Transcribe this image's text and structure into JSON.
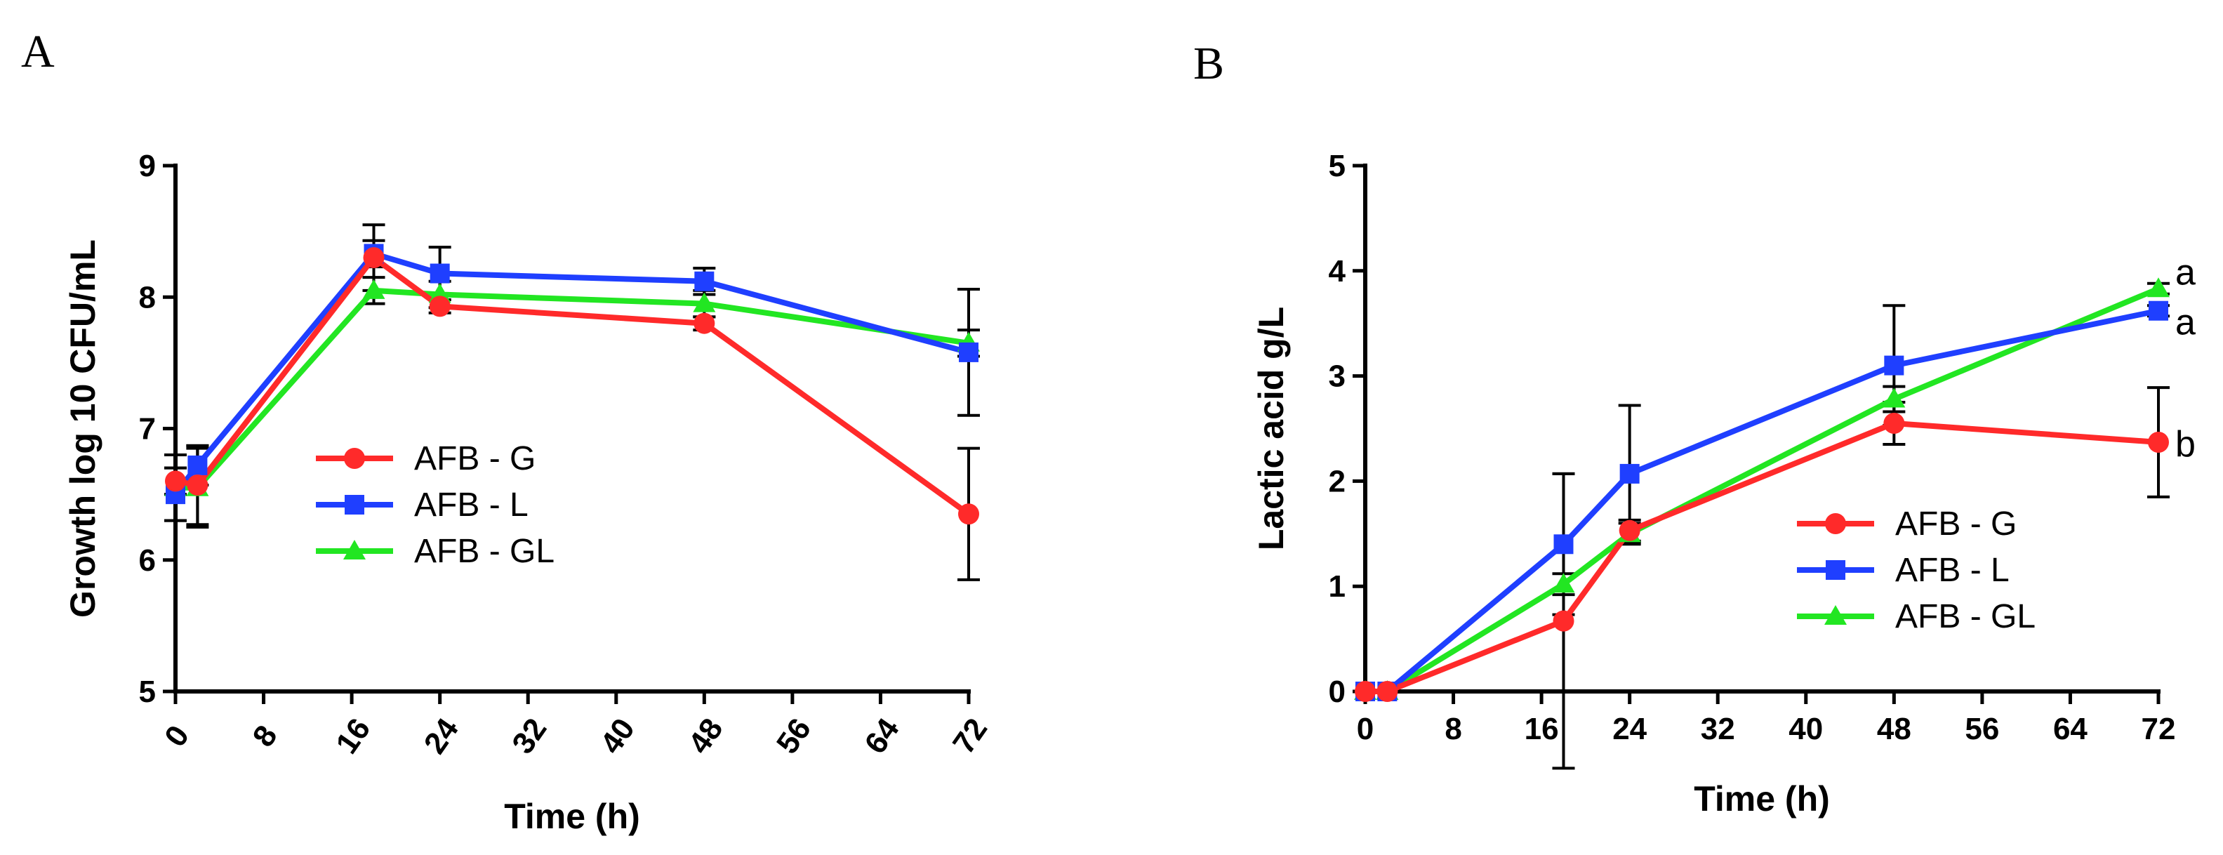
{
  "chart_data": [
    {
      "type": "line",
      "panel_label": "A",
      "title": "",
      "xlabel": "Time (h)",
      "ylabel": "Growth log 10 CFU/mL",
      "xlim": [
        0,
        72
      ],
      "ylim": [
        5,
        9
      ],
      "xticks": [
        "0",
        "8",
        "16",
        "24",
        "32",
        "40",
        "48",
        "56",
        "64",
        "72"
      ],
      "yticks": [
        "5",
        "6",
        "7",
        "8",
        "9"
      ],
      "legend_position": "center-left",
      "series": [
        {
          "name": "AFB - G",
          "color": "#ff2a2a",
          "marker": "circle",
          "points": [
            [
              0,
              6.6
            ],
            [
              2,
              6.57
            ],
            [
              18,
              8.3
            ],
            [
              24,
              7.93
            ],
            [
              48,
              7.8
            ],
            [
              72,
              6.35
            ]
          ],
          "errors": [
            0.1,
            0.3,
            0.25,
            0.05,
            0.05,
            0.5
          ]
        },
        {
          "name": "AFB - L",
          "color": "#1f3fff",
          "marker": "square",
          "points": [
            [
              0,
              6.5
            ],
            [
              2,
              6.72
            ],
            [
              18,
              8.33
            ],
            [
              24,
              8.18
            ],
            [
              48,
              8.12
            ],
            [
              72,
              7.58
            ]
          ],
          "errors": [
            0.2,
            0.15,
            0.1,
            0.2,
            0.1,
            0.48
          ]
        },
        {
          "name": "AFB - GL",
          "color": "#22e622",
          "marker": "triangle",
          "points": [
            [
              0,
              6.55
            ],
            [
              2,
              6.55
            ],
            [
              18,
              8.05
            ],
            [
              24,
              8.02
            ],
            [
              48,
              7.95
            ],
            [
              72,
              7.65
            ]
          ],
          "errors": [
            0.25,
            0.3,
            0.1,
            0.1,
            0.1,
            0.1
          ]
        }
      ],
      "annotations": []
    },
    {
      "type": "line",
      "panel_label": "B",
      "title": "",
      "xlabel": "Time (h)",
      "ylabel": "Lactic acid g/L",
      "xlim": [
        0,
        72
      ],
      "ylim": [
        0,
        5
      ],
      "xticks": [
        "0",
        "8",
        "16",
        "24",
        "32",
        "40",
        "48",
        "56",
        "64",
        "72"
      ],
      "yticks": [
        "0",
        "1",
        "2",
        "3",
        "4",
        "5"
      ],
      "legend_position": "lower-right",
      "series": [
        {
          "name": "AFB - G",
          "color": "#ff2a2a",
          "marker": "circle",
          "points": [
            [
              0,
              0
            ],
            [
              2,
              0
            ],
            [
              18,
              0.67
            ],
            [
              24,
              1.53
            ],
            [
              48,
              2.55
            ],
            [
              72,
              2.37
            ]
          ],
          "errors": [
            0,
            0,
            1.4,
            0.1,
            0.2,
            0.52
          ]
        },
        {
          "name": "AFB - L",
          "color": "#1f3fff",
          "marker": "square",
          "points": [
            [
              0,
              0
            ],
            [
              2,
              0
            ],
            [
              18,
              1.4
            ],
            [
              24,
              2.07
            ],
            [
              48,
              3.1
            ],
            [
              72,
              3.62
            ]
          ],
          "errors": [
            0,
            0,
            0.67,
            0.65,
            0.57,
            0.05
          ]
        },
        {
          "name": "AFB - GL",
          "color": "#22e622",
          "marker": "triangle",
          "points": [
            [
              0,
              0
            ],
            [
              2,
              0
            ],
            [
              18,
              1.02
            ],
            [
              24,
              1.5
            ],
            [
              48,
              2.78
            ],
            [
              72,
              3.83
            ]
          ],
          "errors": [
            0,
            0,
            0.1,
            0.1,
            0.12,
            0.05
          ]
        }
      ],
      "annotations": [
        {
          "text": "a",
          "series": "AFB - GL",
          "x": 72
        },
        {
          "text": "a",
          "series": "AFB - L",
          "x": 72
        },
        {
          "text": "b",
          "series": "AFB - G",
          "x": 72
        }
      ]
    }
  ]
}
